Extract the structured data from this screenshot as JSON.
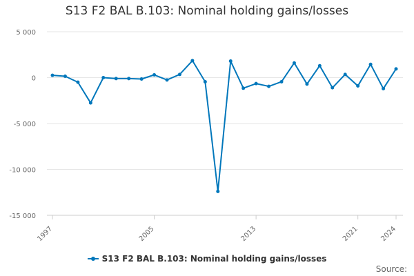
{
  "chart_data": {
    "type": "line",
    "title": "S13 F2 BAL B.103: Nominal holding gains/losses",
    "x": [
      1997,
      1998,
      1999,
      2000,
      2001,
      2002,
      2003,
      2004,
      2005,
      2006,
      2007,
      2008,
      2009,
      2010,
      2011,
      2012,
      2013,
      2014,
      2015,
      2016,
      2017,
      2018,
      2019,
      2020,
      2021,
      2022,
      2023,
      2024
    ],
    "series": [
      {
        "name": "S13 F2 BAL B.103: Nominal holding gains/losses",
        "color": "#0077bb",
        "values": [
          250,
          150,
          -500,
          -2750,
          0,
          -100,
          -100,
          -150,
          300,
          -250,
          350,
          1850,
          -450,
          -12400,
          1800,
          -1150,
          -650,
          -950,
          -450,
          1600,
          -700,
          1300,
          -1100,
          350,
          -900,
          1450,
          -1200,
          950
        ]
      }
    ],
    "ylim": [
      -15000,
      5000
    ],
    "yticks": [
      5000,
      0,
      -5000,
      -10000,
      -15000
    ],
    "ytick_labels": [
      "5 000",
      "0",
      "-5 000",
      "-10 000",
      "-15 000"
    ],
    "xtick_labels": [
      "1997",
      "2005",
      "2013",
      "2021",
      "2024"
    ],
    "xlabel": "",
    "ylabel": "",
    "grid": true,
    "legend_position": "bottom-center",
    "source_label": "Source:"
  }
}
